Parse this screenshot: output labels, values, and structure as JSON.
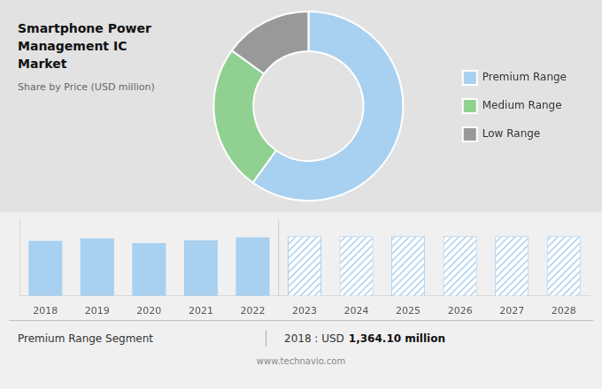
{
  "chart_data": [
    {
      "type": "donut",
      "title": [
        "Smartphone Power",
        "Management IC Market"
      ],
      "subtitle": "Share by Price (USD million)",
      "categories": [
        "Premium Range",
        "Medium Range",
        "Low Range"
      ],
      "values": [
        60,
        25,
        15
      ],
      "colors": [
        "#a8d0f0",
        "#90d090",
        "#999999"
      ],
      "legend": "right"
    },
    {
      "type": "bar",
      "categories": [
        "2018",
        "2019",
        "2020",
        "2021",
        "2022",
        "2023",
        "2024",
        "2025",
        "2026",
        "2027",
        "2028"
      ],
      "series": [
        {
          "color": "#a8d0f0",
          "values": [
            1364,
            1430,
            1310,
            1380,
            1450,
            null,
            null,
            null,
            null,
            null,
            null
          ]
        },
        {
          "color": "#a8d0f0",
          "values": [
            null,
            null,
            null,
            null,
            null,
            1480,
            1480,
            1480,
            1480,
            1480,
            1480
          ]
        }
      ],
      "ylim": [
        0,
        1900
      ],
      "yticks": [],
      "grid": false,
      "tick_labels": "x",
      "annotations": [
        "Premium Range Segment",
        "2018 : USD",
        "1,364.10 million",
        "www.technavio.com"
      ]
    }
  ]
}
